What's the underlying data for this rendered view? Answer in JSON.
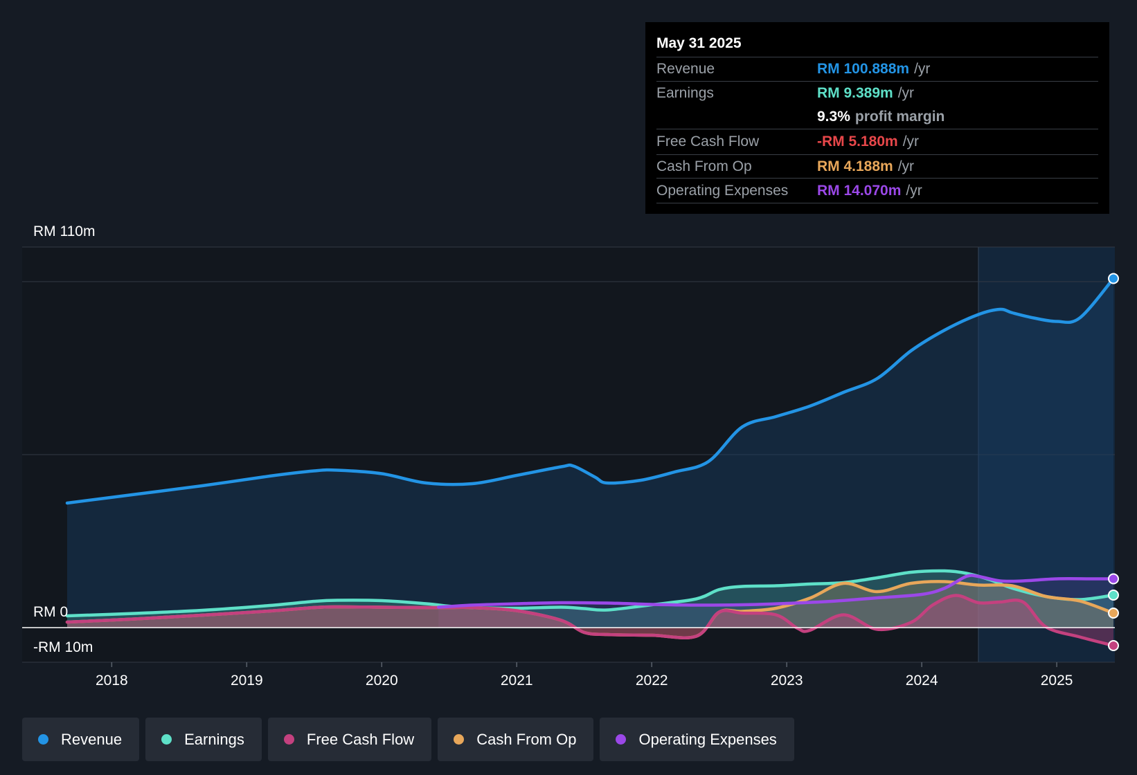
{
  "tooltip": {
    "date": "May 31 2025",
    "revenue_label": "Revenue",
    "revenue_value": "RM 100.888m",
    "revenue_unit": "/yr",
    "earnings_label": "Earnings",
    "earnings_value": "RM 9.389m",
    "earnings_unit": "/yr",
    "margin_value": "9.3%",
    "margin_label": "profit margin",
    "fcf_label": "Free Cash Flow",
    "fcf_value": "-RM 5.180m",
    "fcf_unit": "/yr",
    "cfo_label": "Cash From Op",
    "cfo_value": "RM 4.188m",
    "cfo_unit": "/yr",
    "opex_label": "Operating Expenses",
    "opex_value": "RM 14.070m",
    "opex_unit": "/yr"
  },
  "legend": [
    {
      "label": "Revenue",
      "color": "#2394e5"
    },
    {
      "label": "Earnings",
      "color": "#5ee0c8"
    },
    {
      "label": "Free Cash Flow",
      "color": "#c4417f"
    },
    {
      "label": "Cash From Op",
      "color": "#e8a75a"
    },
    {
      "label": "Operating Expenses",
      "color": "#9b48e8"
    }
  ],
  "chart_data": {
    "type": "line",
    "title": "",
    "ylim": [
      -10,
      110
    ],
    "y_labels": [
      "RM 110m",
      "RM 0",
      "-RM 10m"
    ],
    "x_ticks": [
      "2018",
      "2019",
      "2020",
      "2021",
      "2022",
      "2023",
      "2024",
      "2025"
    ],
    "x_range": [
      2017.67,
      2025.42
    ],
    "highlight_start": 2024.42,
    "series": [
      {
        "name": "Revenue",
        "color": "#2394e5",
        "x": [
          2017.67,
          2018.17,
          2018.67,
          2019.17,
          2019.5,
          2019.67,
          2020.0,
          2020.33,
          2020.67,
          2021.0,
          2021.33,
          2021.42,
          2021.58,
          2021.67,
          2021.92,
          2022.17,
          2022.42,
          2022.67,
          2022.92,
          2023.17,
          2023.42,
          2023.67,
          2023.92,
          2024.17,
          2024.42,
          2024.58,
          2024.67,
          2024.83,
          2025.0,
          2025.17,
          2025.42
        ],
        "y": [
          36,
          38.5,
          41,
          43.8,
          45.3,
          45.5,
          44.5,
          41.8,
          41.6,
          44,
          46.5,
          46.7,
          43.5,
          41.8,
          42.6,
          45,
          48,
          58,
          61,
          64,
          68,
          72,
          80,
          86,
          90.5,
          92,
          91,
          89.5,
          88.5,
          89.5,
          100.9
        ]
      },
      {
        "name": "Earnings",
        "color": "#5ee0c8",
        "x": [
          2017.67,
          2018.17,
          2018.67,
          2019.17,
          2019.5,
          2019.67,
          2020.0,
          2020.33,
          2020.5,
          2020.67,
          2021.0,
          2021.33,
          2021.5,
          2021.67,
          2022.0,
          2022.33,
          2022.5,
          2022.67,
          2022.92,
          2023.17,
          2023.42,
          2023.67,
          2023.92,
          2024.17,
          2024.33,
          2024.5,
          2024.67,
          2024.92,
          2025.17,
          2025.42
        ],
        "y": [
          3.4,
          4.1,
          5.0,
          6.4,
          7.6,
          7.9,
          7.8,
          6.9,
          6.2,
          5.8,
          5.6,
          5.9,
          5.5,
          5.1,
          6.6,
          8.3,
          11.0,
          11.9,
          12.1,
          12.6,
          13.0,
          14.4,
          16.0,
          16.4,
          15.7,
          13.9,
          11.4,
          9.0,
          8.1,
          9.4
        ]
      },
      {
        "name": "Free Cash Flow",
        "color": "#c4417f",
        "x": [
          2017.67,
          2018.17,
          2018.67,
          2019.17,
          2019.5,
          2019.67,
          2020.0,
          2020.33,
          2020.5,
          2020.67,
          2021.0,
          2021.33,
          2021.5,
          2021.67,
          2022.0,
          2022.33,
          2022.5,
          2022.67,
          2022.92,
          2023.08,
          2023.17,
          2023.42,
          2023.67,
          2023.92,
          2024.08,
          2024.25,
          2024.42,
          2024.58,
          2024.75,
          2024.92,
          2025.17,
          2025.42
        ],
        "y": [
          1.6,
          2.5,
          3.6,
          4.8,
          5.8,
          6.0,
          5.9,
          5.8,
          5.8,
          5.8,
          4.9,
          2.1,
          -1.4,
          -2.0,
          -2.2,
          -2.5,
          4.5,
          4.2,
          3.7,
          -0.2,
          -0.8,
          3.7,
          -0.5,
          1.5,
          6.5,
          9.3,
          7.2,
          7.4,
          7.4,
          0.2,
          -2.7,
          -5.2
        ]
      },
      {
        "name": "Cash From Op",
        "color": "#e8a75a",
        "x": [
          2017.67,
          2018.17,
          2018.67,
          2019.17,
          2019.5,
          2019.67,
          2020.0,
          2020.33,
          2020.5,
          2020.67,
          2021.0,
          2021.33,
          2021.5,
          2021.67,
          2022.0,
          2022.33,
          2022.5,
          2022.67,
          2022.92,
          2023.17,
          2023.42,
          2023.67,
          2023.92,
          2024.17,
          2024.42,
          2024.67,
          2024.92,
          2025.17,
          2025.42
        ],
        "y": [
          1.6,
          2.5,
          3.6,
          4.8,
          5.8,
          6.0,
          5.9,
          5.8,
          5.8,
          5.8,
          4.9,
          2.1,
          -1.4,
          -2.0,
          -2.2,
          -2.5,
          4.5,
          4.7,
          5.6,
          8.5,
          12.8,
          10.4,
          12.8,
          13.3,
          12.3,
          12.1,
          9.0,
          7.7,
          4.2
        ]
      },
      {
        "name": "Operating Expenses",
        "color": "#9b48e8",
        "x": [
          2020.42,
          2020.67,
          2021.0,
          2021.33,
          2021.67,
          2022.0,
          2022.33,
          2022.67,
          2023.0,
          2023.33,
          2023.67,
          2024.0,
          2024.17,
          2024.33,
          2024.42,
          2024.58,
          2024.75,
          2025.0,
          2025.25,
          2025.42
        ],
        "y": [
          5.9,
          6.5,
          6.9,
          7.2,
          7.1,
          6.7,
          6.5,
          6.6,
          7.0,
          7.6,
          8.6,
          9.6,
          11.4,
          14.8,
          14.8,
          13.5,
          13.5,
          14.1,
          14.1,
          14.1
        ]
      }
    ]
  }
}
